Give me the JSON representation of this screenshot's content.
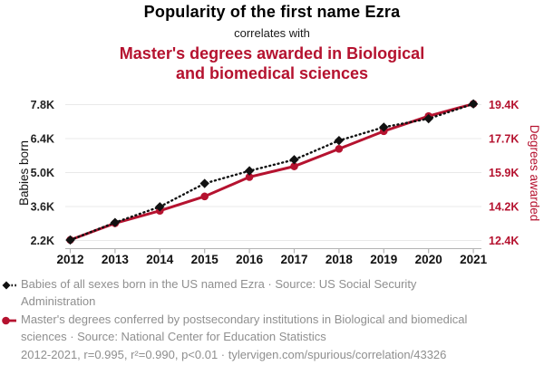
{
  "header": {
    "title": "Popularity of the first name Ezra",
    "connector": "correlates with",
    "subtitle_line1": "Master's degrees awarded in Biological",
    "subtitle_line2": "and biomedical sciences"
  },
  "chart_data": {
    "type": "line",
    "x": [
      2012,
      2013,
      2014,
      2015,
      2016,
      2017,
      2018,
      2019,
      2020,
      2021
    ],
    "series": [
      {
        "name": "Babies of all sexes born in the US named Ezra",
        "axis": "left",
        "color": "#111111",
        "style": "dotted",
        "marker": "diamond",
        "values": [
          2220,
          2940,
          3590,
          4550,
          5070,
          5530,
          6320,
          6870,
          7220,
          7830
        ]
      },
      {
        "name": "Master's degrees conferred in Biological and biomedical sciences",
        "axis": "right",
        "color": "#b5122f",
        "style": "solid",
        "marker": "circle",
        "values": [
          12430,
          13290,
          13930,
          14670,
          15670,
          16220,
          17120,
          18030,
          18810,
          19440
        ]
      }
    ],
    "left_axis": {
      "label": "Babies born",
      "ticks": [
        2200,
        3600,
        5000,
        6400,
        7800
      ],
      "tick_labels": [
        "2.2K",
        "3.6K",
        "5.0K",
        "6.4K",
        "7.8K"
      ],
      "range": [
        2200,
        7800
      ]
    },
    "right_axis": {
      "label": "Degrees awarded",
      "ticks": [
        12400,
        14150,
        15900,
        17650,
        19400
      ],
      "tick_labels": [
        "12.4K",
        "14.2K",
        "15.9K",
        "17.7K",
        "19.4K"
      ],
      "range": [
        12400,
        19400
      ]
    },
    "x_axis": {
      "tick_labels": [
        "2012",
        "2013",
        "2014",
        "2015",
        "2016",
        "2017",
        "2018",
        "2019",
        "2020",
        "2021"
      ]
    },
    "grid": "horizontal",
    "legend_position": "bottom"
  },
  "legend": [
    {
      "label": "Babies of all sexes born in the US named Ezra · Source: US Social Security Administration",
      "marker": "black-diamond-dotted"
    },
    {
      "label": "Master's degrees conferred by postsecondary institutions in Biological and biomedical sciences · Source: National Center for Education Statistics",
      "marker": "red-circle-solid"
    }
  ],
  "footer": {
    "stats": "2012-2021, r=0.995, r²=0.990, p<0.01 · tylervigen.com/spurious/correlation/43326"
  },
  "colors": {
    "accent_red": "#b5122f",
    "series_black": "#111111",
    "grid_line": "#e9e9e9",
    "axis_line": "#b3b3b3",
    "year_label": "#111111",
    "left_tick_label": "#222222",
    "legend_text": "#8f8f8f"
  }
}
